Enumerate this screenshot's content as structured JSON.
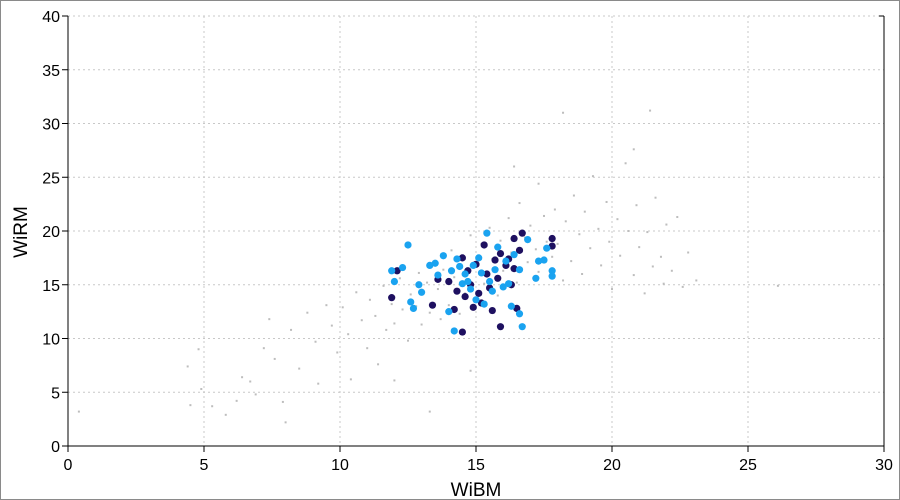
{
  "chart_data": {
    "type": "scatter",
    "title": "",
    "xlabel": "WiBM",
    "ylabel": "WiRM",
    "xlim": [
      0,
      30
    ],
    "ylim": [
      0,
      40
    ],
    "xticks": [
      "0",
      "5",
      "10",
      "15",
      "20",
      "25",
      "30"
    ],
    "yticks": [
      "0",
      "5",
      "10",
      "15",
      "20",
      "25",
      "30",
      "35",
      "40"
    ],
    "grid": true,
    "colors": {
      "background": "#bdbdbd",
      "light": "#1aa3f0",
      "dark": "#1e1060"
    },
    "series": [
      {
        "role": "background",
        "color": "#bdbdbd",
        "points": [
          [
            0.4,
            3.2
          ],
          [
            4.4,
            7.4
          ],
          [
            4.5,
            3.8
          ],
          [
            4.8,
            9.0
          ],
          [
            4.9,
            5.3
          ],
          [
            5.3,
            3.7
          ],
          [
            5.8,
            2.9
          ],
          [
            6.2,
            4.2
          ],
          [
            6.4,
            6.4
          ],
          [
            6.7,
            6.0
          ],
          [
            6.9,
            4.8
          ],
          [
            7.2,
            9.1
          ],
          [
            7.4,
            11.8
          ],
          [
            7.6,
            8.1
          ],
          [
            7.9,
            4.1
          ],
          [
            8.2,
            10.8
          ],
          [
            8.5,
            7.2
          ],
          [
            8.8,
            12.4
          ],
          [
            9.1,
            9.7
          ],
          [
            9.2,
            5.8
          ],
          [
            9.5,
            13.1
          ],
          [
            9.7,
            11.2
          ],
          [
            9.9,
            8.7
          ],
          [
            10.1,
            12.9
          ],
          [
            10.3,
            10.4
          ],
          [
            10.4,
            6.2
          ],
          [
            10.6,
            14.3
          ],
          [
            10.8,
            11.7
          ],
          [
            11.0,
            9.1
          ],
          [
            11.1,
            13.6
          ],
          [
            11.3,
            12.1
          ],
          [
            11.4,
            7.6
          ],
          [
            11.6,
            14.9
          ],
          [
            11.7,
            10.8
          ],
          [
            11.9,
            13.2
          ],
          [
            12.0,
            11.4
          ],
          [
            12.2,
            15.6
          ],
          [
            12.3,
            12.7
          ],
          [
            12.5,
            9.8
          ],
          [
            12.6,
            14.1
          ],
          [
            12.8,
            13.0
          ],
          [
            12.9,
            16.1
          ],
          [
            13.0,
            11.3
          ],
          [
            13.2,
            15.2
          ],
          [
            13.3,
            12.4
          ],
          [
            13.4,
            17.0
          ],
          [
            13.6,
            14.6
          ],
          [
            13.7,
            11.8
          ],
          [
            13.8,
            16.4
          ],
          [
            14.0,
            13.1
          ],
          [
            14.1,
            18.2
          ],
          [
            14.2,
            15.7
          ],
          [
            14.4,
            12.3
          ],
          [
            14.5,
            17.3
          ],
          [
            14.6,
            14.2
          ],
          [
            14.8,
            19.6
          ],
          [
            14.9,
            16.8
          ],
          [
            15.0,
            13.4
          ],
          [
            15.2,
            18.8
          ],
          [
            15.3,
            15.1
          ],
          [
            15.5,
            20.3
          ],
          [
            15.6,
            17.4
          ],
          [
            15.8,
            14.0
          ],
          [
            15.9,
            19.1
          ],
          [
            16.0,
            16.3
          ],
          [
            16.2,
            21.2
          ],
          [
            16.3,
            18.0
          ],
          [
            16.5,
            15.2
          ],
          [
            16.6,
            22.6
          ],
          [
            16.8,
            19.4
          ],
          [
            16.9,
            17.1
          ],
          [
            17.0,
            20.5
          ],
          [
            17.2,
            18.3
          ],
          [
            17.3,
            16.2
          ],
          [
            17.5,
            21.4
          ],
          [
            17.6,
            19.0
          ],
          [
            17.8,
            17.6
          ],
          [
            17.9,
            22.0
          ],
          [
            18.0,
            18.8
          ],
          [
            18.2,
            15.4
          ],
          [
            18.3,
            20.9
          ],
          [
            18.5,
            17.2
          ],
          [
            18.6,
            23.3
          ],
          [
            18.8,
            19.7
          ],
          [
            18.9,
            16.0
          ],
          [
            19.0,
            21.8
          ],
          [
            19.2,
            18.4
          ],
          [
            19.3,
            25.1
          ],
          [
            19.5,
            20.2
          ],
          [
            19.6,
            16.8
          ],
          [
            19.8,
            22.7
          ],
          [
            19.9,
            19.0
          ],
          [
            20.0,
            14.6
          ],
          [
            20.2,
            21.1
          ],
          [
            20.3,
            17.7
          ],
          [
            20.5,
            26.3
          ],
          [
            20.6,
            20.0
          ],
          [
            20.8,
            15.9
          ],
          [
            20.9,
            22.4
          ],
          [
            21.0,
            18.5
          ],
          [
            21.2,
            14.2
          ],
          [
            21.3,
            19.9
          ],
          [
            21.5,
            16.7
          ],
          [
            21.6,
            23.1
          ],
          [
            21.8,
            17.6
          ],
          [
            21.9,
            15.1
          ],
          [
            22.0,
            20.6
          ],
          [
            22.2,
            16.3
          ],
          [
            22.4,
            21.3
          ],
          [
            22.6,
            14.8
          ],
          [
            22.8,
            18.0
          ],
          [
            23.1,
            15.4
          ],
          [
            26.1,
            14.9
          ],
          [
            18.2,
            31.0
          ],
          [
            21.4,
            31.2
          ],
          [
            20.8,
            27.6
          ],
          [
            17.3,
            24.4
          ],
          [
            16.4,
            26.0
          ],
          [
            13.3,
            3.2
          ],
          [
            12.0,
            6.1
          ],
          [
            8.0,
            2.2
          ],
          [
            14.8,
            7.0
          ]
        ]
      },
      {
        "role": "dark",
        "color": "#1e1060",
        "points": [
          [
            11.9,
            13.8
          ],
          [
            12.1,
            16.3
          ],
          [
            13.4,
            13.1
          ],
          [
            13.6,
            15.5
          ],
          [
            14.0,
            15.3
          ],
          [
            14.2,
            12.7
          ],
          [
            14.3,
            14.4
          ],
          [
            14.5,
            17.5
          ],
          [
            14.5,
            10.6
          ],
          [
            14.6,
            13.9
          ],
          [
            14.7,
            16.3
          ],
          [
            14.8,
            15.0
          ],
          [
            14.9,
            12.9
          ],
          [
            15.0,
            16.9
          ],
          [
            15.1,
            14.2
          ],
          [
            15.2,
            13.3
          ],
          [
            15.3,
            18.7
          ],
          [
            15.4,
            16.0
          ],
          [
            15.5,
            14.7
          ],
          [
            15.6,
            12.6
          ],
          [
            15.7,
            17.3
          ],
          [
            15.8,
            15.6
          ],
          [
            15.9,
            17.9
          ],
          [
            15.9,
            11.1
          ],
          [
            16.1,
            16.8
          ],
          [
            16.2,
            17.4
          ],
          [
            16.3,
            15.0
          ],
          [
            16.4,
            19.3
          ],
          [
            16.5,
            12.8
          ],
          [
            16.6,
            18.2
          ],
          [
            16.7,
            19.8
          ],
          [
            17.8,
            18.6
          ],
          [
            17.8,
            19.3
          ],
          [
            16.4,
            16.5
          ]
        ]
      },
      {
        "role": "light",
        "color": "#1aa3f0",
        "points": [
          [
            11.9,
            16.3
          ],
          [
            12.0,
            15.3
          ],
          [
            12.3,
            16.6
          ],
          [
            12.5,
            18.7
          ],
          [
            12.6,
            13.4
          ],
          [
            12.7,
            12.8
          ],
          [
            12.9,
            15.0
          ],
          [
            13.0,
            14.3
          ],
          [
            13.3,
            16.8
          ],
          [
            13.5,
            17.0
          ],
          [
            13.6,
            15.9
          ],
          [
            13.8,
            17.7
          ],
          [
            14.0,
            12.5
          ],
          [
            14.1,
            16.3
          ],
          [
            14.2,
            10.7
          ],
          [
            14.3,
            17.4
          ],
          [
            14.4,
            16.7
          ],
          [
            14.5,
            15.1
          ],
          [
            14.6,
            16.0
          ],
          [
            14.7,
            15.3
          ],
          [
            14.8,
            14.6
          ],
          [
            14.9,
            16.8
          ],
          [
            15.0,
            13.6
          ],
          [
            15.1,
            17.5
          ],
          [
            15.2,
            16.1
          ],
          [
            15.3,
            13.2
          ],
          [
            15.4,
            19.8
          ],
          [
            15.5,
            15.3
          ],
          [
            15.6,
            14.4
          ],
          [
            15.7,
            16.4
          ],
          [
            15.8,
            18.5
          ],
          [
            16.0,
            14.8
          ],
          [
            16.1,
            17.2
          ],
          [
            16.2,
            15.1
          ],
          [
            16.3,
            13.0
          ],
          [
            16.4,
            17.8
          ],
          [
            16.6,
            16.4
          ],
          [
            16.6,
            12.3
          ],
          [
            16.7,
            11.1
          ],
          [
            16.9,
            19.2
          ],
          [
            17.2,
            15.6
          ],
          [
            17.3,
            17.2
          ],
          [
            17.5,
            17.3
          ],
          [
            17.6,
            18.4
          ],
          [
            17.8,
            16.3
          ],
          [
            17.8,
            15.8
          ]
        ]
      }
    ]
  }
}
